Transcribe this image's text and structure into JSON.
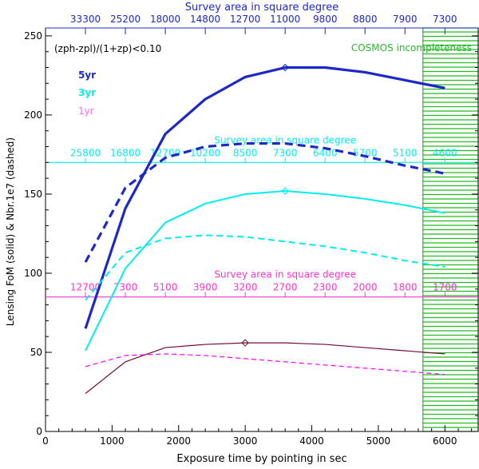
{
  "chart_data": {
    "type": "line",
    "title": "",
    "xlabel": "Exposure time by pointing in sec",
    "ylabel": "Lensing FoM (solid) & Nbr.1e7 (dashed)",
    "xlim": [
      0,
      6500
    ],
    "ylim": [
      0,
      255
    ],
    "x_ticks": [
      0,
      1000,
      2000,
      3000,
      4000,
      5000,
      6000
    ],
    "y_ticks": [
      0,
      50,
      100,
      150,
      200,
      250
    ],
    "condition_label": "(zph-zpl)/(1+zp)<0.10",
    "cosmos_label": "COSMOS incompleteness",
    "cosmos_region": [
      5670,
      6500
    ],
    "x": [
      600,
      1200,
      1800,
      2400,
      3000,
      3600,
      4200,
      4800,
      5400,
      6000
    ],
    "top_axis": {
      "title": "Survey area in square degree",
      "tick_x": [
        600,
        1200,
        1800,
        2400,
        3000,
        3600,
        4200,
        4800,
        5400,
        6000
      ],
      "tick_labels": [
        "33300",
        "25200",
        "18000",
        "14800",
        "12700",
        "11000",
        "9800",
        "8800",
        "7900",
        "7300"
      ]
    },
    "series": [
      {
        "name": "5yr FoM",
        "legend": "5yr",
        "color": "#1c28c8",
        "style": "solid",
        "weight": "thick",
        "marker_x": 3600,
        "values": [
          65,
          141,
          188,
          210,
          224,
          230,
          230,
          227,
          222,
          217
        ]
      },
      {
        "name": "5yr galaxies",
        "color": "#1c28c8",
        "style": "dashed",
        "weight": "thick",
        "values": [
          107,
          154,
          173,
          180,
          182,
          182,
          179,
          174,
          168,
          163
        ]
      },
      {
        "name": "3yr FoM",
        "legend": "3yr",
        "color": "#00eeee",
        "style": "solid",
        "weight": "medium",
        "marker_x": 3600,
        "values": [
          51,
          103,
          132,
          144,
          150,
          152,
          150,
          147,
          143,
          138
        ]
      },
      {
        "name": "3yr galaxies",
        "color": "#00eeee",
        "style": "dashed",
        "weight": "medium",
        "values": [
          83,
          113,
          122,
          124,
          123,
          120,
          117,
          113,
          108,
          104
        ]
      },
      {
        "name": "1yr FoM",
        "legend": "1yr",
        "color": "#6e0a3c",
        "style": "solid",
        "weight": "thin",
        "marker_x": 3000,
        "values": [
          24,
          44,
          53,
          55,
          56,
          56,
          55,
          53,
          51,
          49
        ]
      },
      {
        "name": "1yr galaxies",
        "color": "#ff00ff",
        "style": "dashed",
        "weight": "thin",
        "values": [
          41,
          48,
          49,
          48,
          46,
          44,
          42,
          40,
          38,
          36
        ]
      }
    ],
    "legend_colors": [
      "#1c28c8",
      "#00eeee",
      "#ff66ff"
    ],
    "inner_axes": [
      {
        "title": "Survey area in square degree",
        "color": "#00eeee",
        "y": 170,
        "tick_labels": [
          "25800",
          "16800",
          "12700",
          "10200",
          "8500",
          "7300",
          "6400",
          "5700",
          "5100",
          "4600"
        ]
      },
      {
        "title": "Survey area in square degree",
        "color": "#ff33cc",
        "y": 85,
        "tick_labels": [
          "12700",
          "7300",
          "5100",
          "3900",
          "3200",
          "2700",
          "2300",
          "2000",
          "1800",
          "1700"
        ]
      }
    ]
  }
}
